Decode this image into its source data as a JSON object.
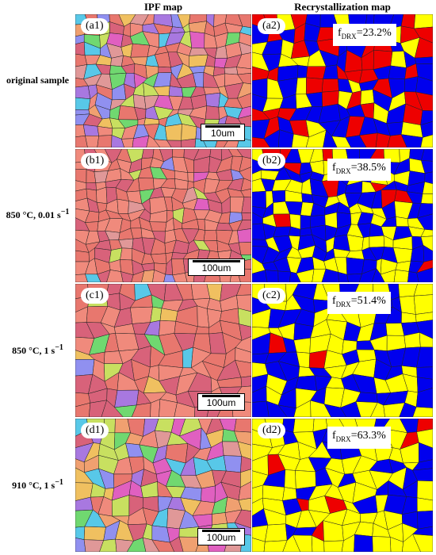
{
  "columns": {
    "left": "IPF map",
    "right": "Recrystallization map"
  },
  "rows": [
    {
      "condition": "original sample",
      "cond_sup": "",
      "ipf": {
        "label": "(a1)",
        "scale": "10um"
      },
      "recryst": {
        "label": "(a2)",
        "f_prefix": "f",
        "f_sub": "DRX",
        "f_value": "=23.2%"
      }
    },
    {
      "condition": "850 °C, 0.01 s",
      "cond_sup": "−1",
      "ipf": {
        "label": "(b1)",
        "scale": "100um"
      },
      "recryst": {
        "label": "(b2)",
        "f_prefix": "f",
        "f_sub": "DRX",
        "f_value": "=38.5%"
      }
    },
    {
      "condition": "850 °C, 1 s",
      "cond_sup": "−1",
      "ipf": {
        "label": "(c1)",
        "scale": "100um"
      },
      "recryst": {
        "label": "(c2)",
        "f_prefix": "f",
        "f_sub": "DRX",
        "f_value": "=51.4%"
      }
    },
    {
      "condition": "910 °C, 1 s",
      "cond_sup": "−1",
      "ipf": {
        "label": "(d1)",
        "scale": "100um"
      },
      "recryst": {
        "label": "(d2)",
        "f_prefix": "f",
        "f_sub": "DRX",
        "f_value": "=63.3%"
      }
    }
  ],
  "colors": {
    "recrystallized": "#ffff00",
    "substructured": "#0000ee",
    "deformed": "#ee0000",
    "ipf_base": "#e8776e",
    "ipf_palette": [
      "#e8776e",
      "#f08a7c",
      "#d8627a",
      "#f0a070",
      "#c8e060",
      "#70d870",
      "#a878e0",
      "#58c8e8",
      "#f0c060",
      "#e060c0",
      "#9090f0",
      "#e09898"
    ]
  }
}
